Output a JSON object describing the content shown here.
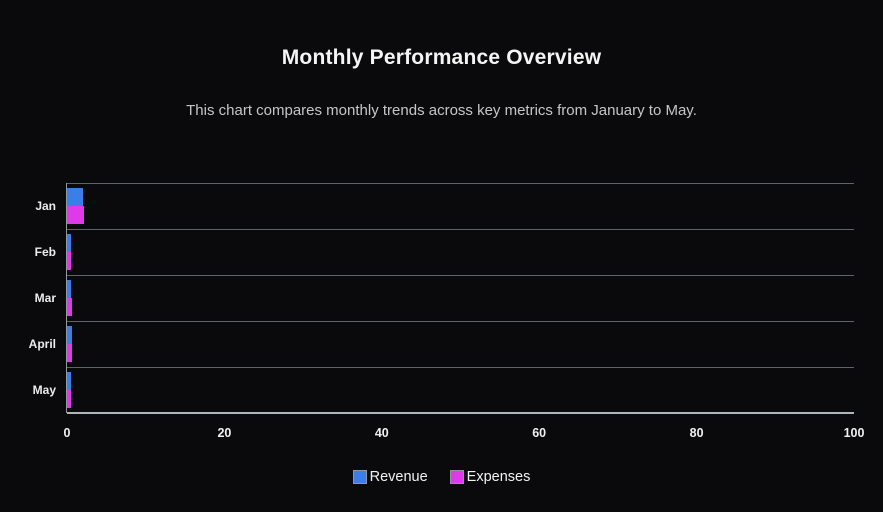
{
  "page": {
    "title": "Monthly Performance Overview",
    "subtitle": "This chart compares monthly trends across key metrics from January to May.",
    "background_color": "#0a0a0c"
  },
  "chart_data": {
    "type": "bar",
    "orientation": "horizontal",
    "title": "Monthly Performance Overview",
    "subtitle": "This chart compares monthly trends across key metrics from January to May.",
    "categories": [
      "Jan",
      "Feb",
      "Mar",
      "April",
      "May"
    ],
    "series": [
      {
        "name": "Revenue",
        "color": "#3b7ee8",
        "values": [
          2.0,
          0.5,
          0.5,
          0.6,
          0.5
        ]
      },
      {
        "name": "Expenses",
        "color": "#e03ae8",
        "values": [
          2.2,
          0.5,
          0.6,
          0.6,
          0.5
        ]
      }
    ],
    "xlabel": "",
    "ylabel": "",
    "xlim": [
      0,
      100
    ],
    "xticks": [
      0,
      20,
      40,
      60,
      80,
      100
    ],
    "grid": "horizontal-category-boundaries",
    "legend_position": "bottom",
    "axis_color": "#aeb6bc",
    "grid_color": "#a5afb8",
    "label_color": "#ececec"
  }
}
